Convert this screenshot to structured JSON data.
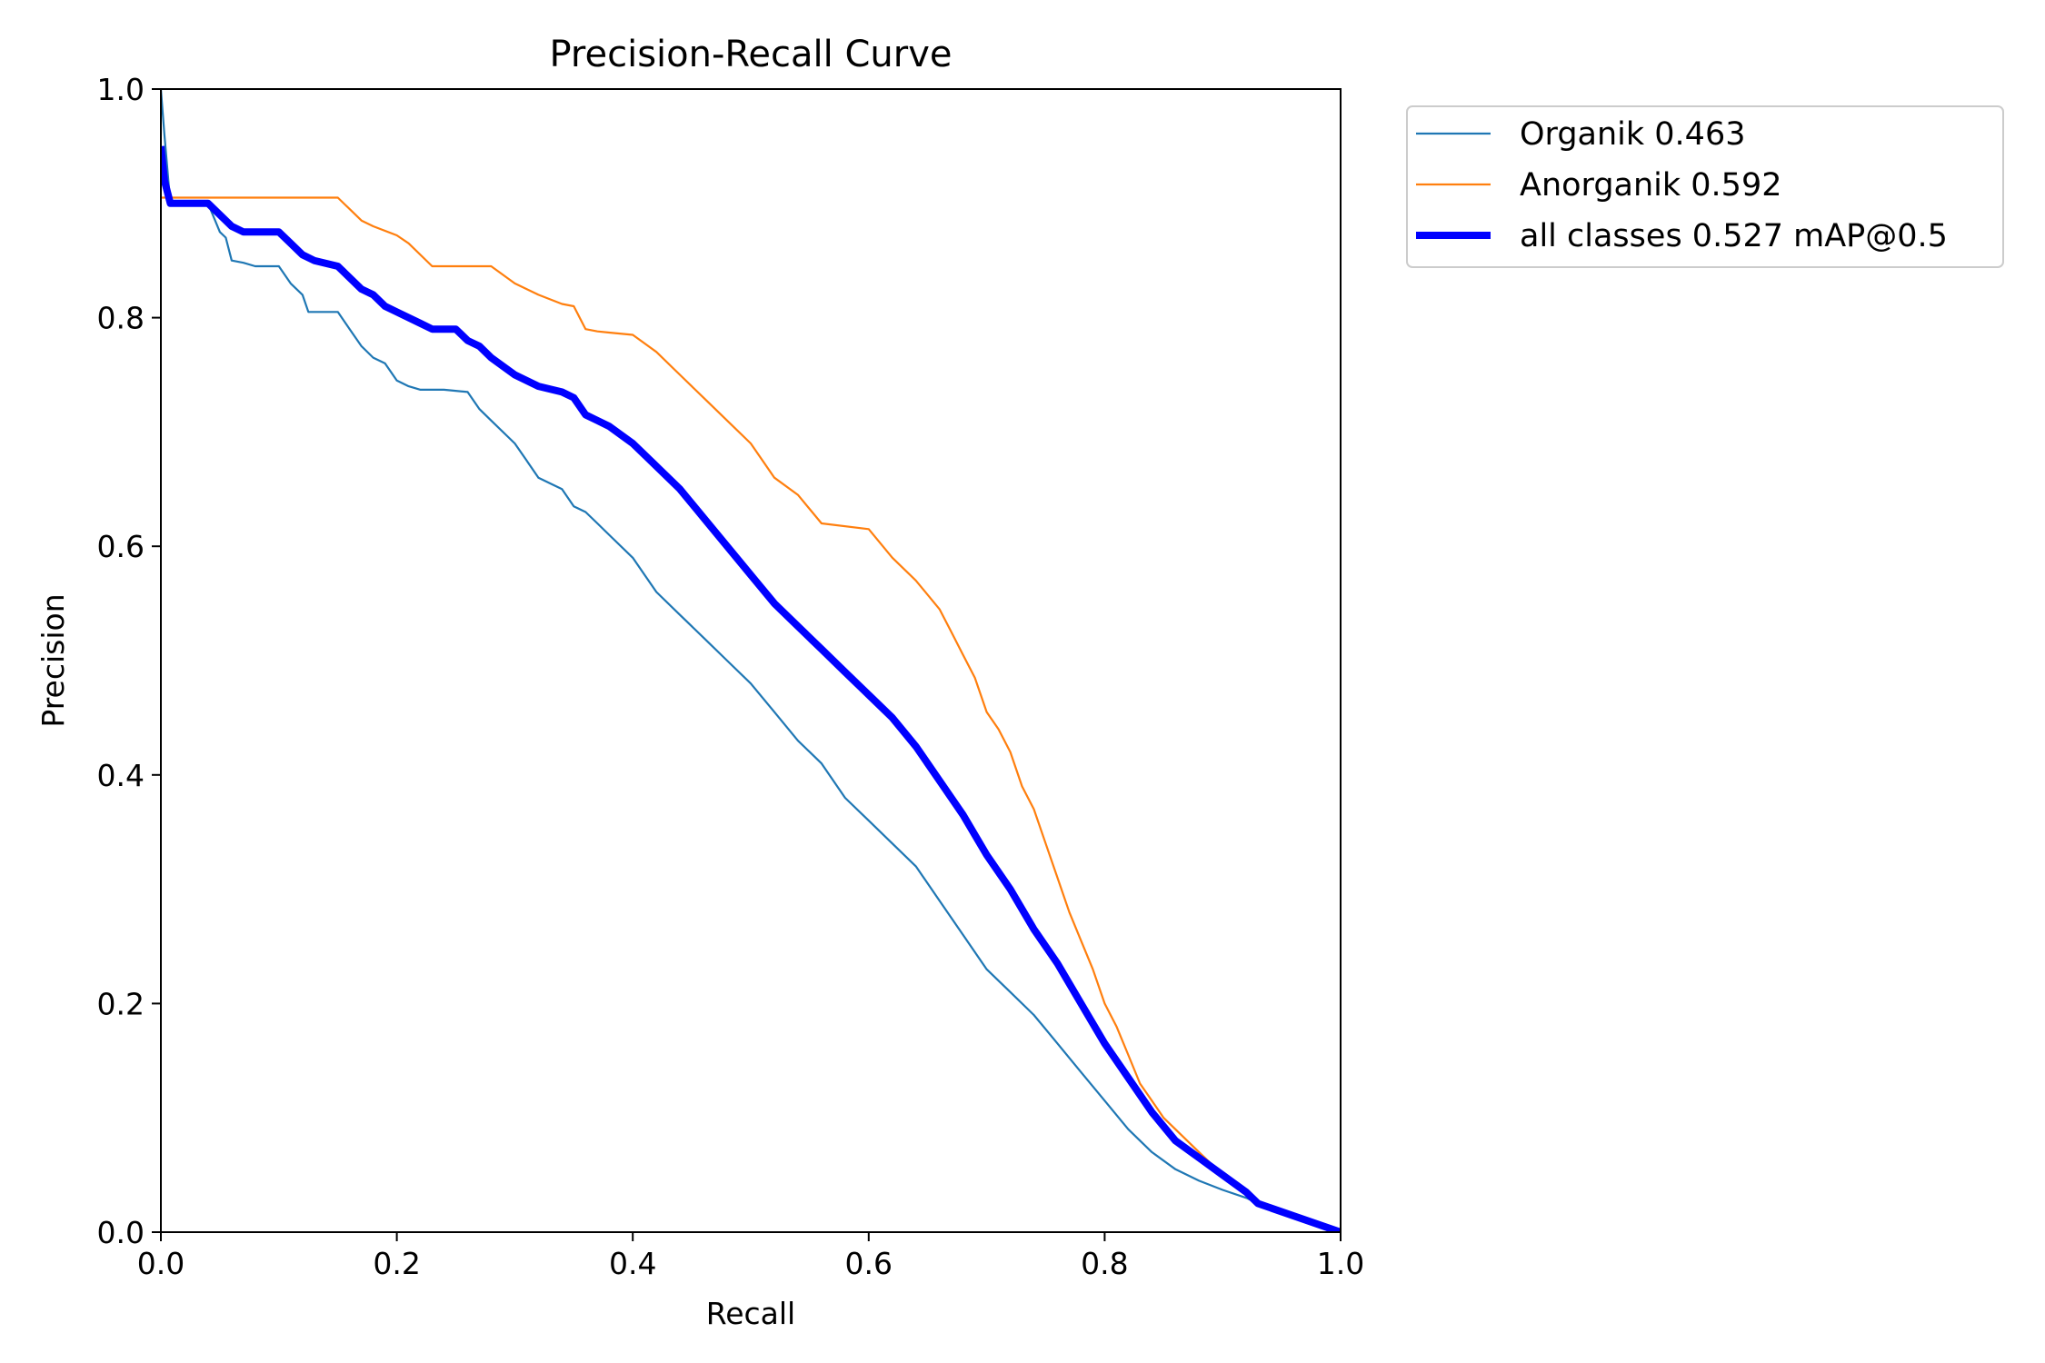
{
  "chart_data": {
    "type": "line",
    "title": "Precision-Recall Curve",
    "xlabel": "Recall",
    "ylabel": "Precision",
    "xlim": [
      0,
      1
    ],
    "ylim": [
      0,
      1
    ],
    "xticks": [
      "0.0",
      "0.2",
      "0.4",
      "0.6",
      "0.8",
      "1.0"
    ],
    "yticks": [
      "0.0",
      "0.2",
      "0.4",
      "0.6",
      "0.8",
      "1.0"
    ],
    "grid": false,
    "legend_position": "outside-top-right",
    "series": [
      {
        "name": "Organik 0.463",
        "color": "#1f77b4",
        "width": "thin",
        "x": [
          0.0,
          0.003,
          0.008,
          0.02,
          0.04,
          0.05,
          0.055,
          0.06,
          0.07,
          0.08,
          0.1,
          0.11,
          0.12,
          0.125,
          0.13,
          0.15,
          0.16,
          0.17,
          0.18,
          0.19,
          0.2,
          0.21,
          0.22,
          0.24,
          0.26,
          0.27,
          0.28,
          0.3,
          0.31,
          0.32,
          0.33,
          0.34,
          0.35,
          0.36,
          0.37,
          0.38,
          0.4,
          0.42,
          0.44,
          0.46,
          0.48,
          0.5,
          0.52,
          0.54,
          0.55,
          0.56,
          0.58,
          0.6,
          0.62,
          0.64,
          0.66,
          0.68,
          0.7,
          0.72,
          0.74,
          0.76,
          0.78,
          0.8,
          0.82,
          0.84,
          0.86,
          0.88,
          0.9,
          0.92,
          0.93,
          1.0
        ],
        "y": [
          1.0,
          0.96,
          0.9,
          0.9,
          0.9,
          0.875,
          0.87,
          0.85,
          0.848,
          0.845,
          0.845,
          0.83,
          0.82,
          0.805,
          0.805,
          0.805,
          0.79,
          0.775,
          0.765,
          0.76,
          0.745,
          0.74,
          0.737,
          0.737,
          0.735,
          0.72,
          0.71,
          0.69,
          0.675,
          0.66,
          0.655,
          0.65,
          0.635,
          0.63,
          0.62,
          0.61,
          0.59,
          0.56,
          0.54,
          0.52,
          0.5,
          0.48,
          0.455,
          0.43,
          0.42,
          0.41,
          0.38,
          0.36,
          0.34,
          0.32,
          0.29,
          0.26,
          0.23,
          0.21,
          0.19,
          0.165,
          0.14,
          0.115,
          0.09,
          0.07,
          0.055,
          0.045,
          0.037,
          0.03,
          0.025,
          0.0
        ]
      },
      {
        "name": "Anorganik 0.592",
        "color": "#ff7f0e",
        "width": "thin",
        "x": [
          0.0,
          0.05,
          0.1,
          0.15,
          0.16,
          0.17,
          0.18,
          0.2,
          0.21,
          0.23,
          0.25,
          0.28,
          0.3,
          0.32,
          0.34,
          0.35,
          0.36,
          0.37,
          0.38,
          0.4,
          0.42,
          0.44,
          0.46,
          0.48,
          0.5,
          0.52,
          0.54,
          0.56,
          0.6,
          0.62,
          0.64,
          0.66,
          0.67,
          0.68,
          0.69,
          0.7,
          0.71,
          0.72,
          0.73,
          0.74,
          0.75,
          0.76,
          0.77,
          0.78,
          0.79,
          0.8,
          0.81,
          0.82,
          0.83,
          0.84,
          0.85,
          0.86,
          0.87,
          0.88,
          0.9,
          0.92,
          0.93,
          1.0
        ],
        "y": [
          0.905,
          0.905,
          0.905,
          0.905,
          0.895,
          0.885,
          0.88,
          0.872,
          0.865,
          0.845,
          0.845,
          0.845,
          0.83,
          0.82,
          0.812,
          0.81,
          0.79,
          0.788,
          0.787,
          0.785,
          0.77,
          0.75,
          0.73,
          0.71,
          0.69,
          0.66,
          0.645,
          0.62,
          0.615,
          0.59,
          0.57,
          0.545,
          0.525,
          0.505,
          0.485,
          0.455,
          0.44,
          0.42,
          0.39,
          0.37,
          0.34,
          0.31,
          0.28,
          0.255,
          0.23,
          0.2,
          0.18,
          0.155,
          0.13,
          0.115,
          0.1,
          0.09,
          0.08,
          0.07,
          0.05,
          0.035,
          0.025,
          0.0
        ]
      },
      {
        "name": "all classes 0.527 mAP@0.5",
        "color": "#0000ff",
        "width": "thick",
        "x": [
          0.0,
          0.003,
          0.008,
          0.02,
          0.04,
          0.05,
          0.06,
          0.07,
          0.1,
          0.11,
          0.12,
          0.13,
          0.15,
          0.16,
          0.17,
          0.18,
          0.19,
          0.2,
          0.22,
          0.23,
          0.25,
          0.26,
          0.27,
          0.28,
          0.3,
          0.32,
          0.34,
          0.35,
          0.36,
          0.37,
          0.38,
          0.4,
          0.42,
          0.44,
          0.46,
          0.48,
          0.5,
          0.52,
          0.54,
          0.56,
          0.58,
          0.6,
          0.62,
          0.64,
          0.66,
          0.68,
          0.7,
          0.72,
          0.74,
          0.76,
          0.78,
          0.8,
          0.82,
          0.84,
          0.86,
          0.88,
          0.9,
          0.92,
          0.93,
          1.0
        ],
        "y": [
          0.95,
          0.92,
          0.9,
          0.9,
          0.9,
          0.89,
          0.88,
          0.875,
          0.875,
          0.865,
          0.855,
          0.85,
          0.845,
          0.835,
          0.825,
          0.82,
          0.81,
          0.805,
          0.795,
          0.79,
          0.79,
          0.78,
          0.775,
          0.765,
          0.75,
          0.74,
          0.735,
          0.73,
          0.715,
          0.71,
          0.705,
          0.69,
          0.67,
          0.65,
          0.625,
          0.6,
          0.575,
          0.55,
          0.53,
          0.51,
          0.49,
          0.47,
          0.45,
          0.425,
          0.395,
          0.365,
          0.33,
          0.3,
          0.265,
          0.235,
          0.2,
          0.165,
          0.135,
          0.105,
          0.08,
          0.065,
          0.05,
          0.035,
          0.025,
          0.0
        ]
      }
    ]
  }
}
